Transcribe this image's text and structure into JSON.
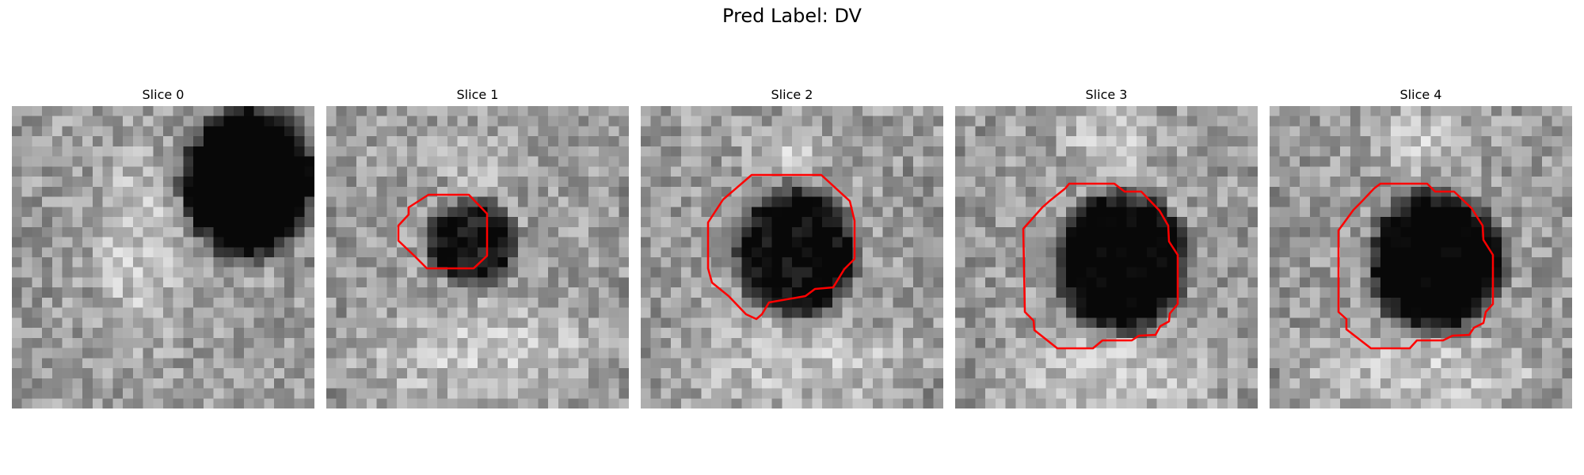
{
  "figure": {
    "title": "Pred Label: DV",
    "contour_color": "#ff0000",
    "panels": [
      {
        "title": "Slice 0",
        "has_contour": false,
        "darkness": [
          0.78,
          0.3,
          0.3,
          0.34
        ]
      },
      {
        "title": "Slice 1",
        "has_contour": true,
        "darkness": [
          0.55,
          0.47,
          0.22,
          0.21
        ]
      },
      {
        "title": "Slice 2",
        "has_contour": true,
        "darkness": [
          0.62,
          0.47,
          0.33,
          0.34
        ]
      },
      {
        "title": "Slice 3",
        "has_contour": true,
        "darkness": [
          0.7,
          0.45,
          0.33,
          0.36
        ]
      },
      {
        "title": "Slice 4",
        "has_contour": true,
        "darkness": [
          0.72,
          0.45,
          0.34,
          0.36
        ]
      }
    ]
  }
}
